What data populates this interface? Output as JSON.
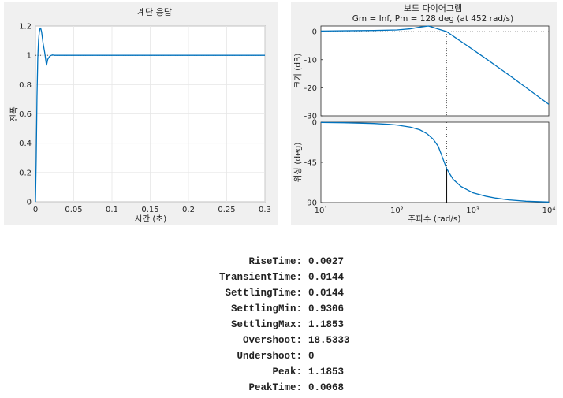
{
  "chart_data": [
    {
      "type": "line",
      "title": "계단 응답",
      "xlabel": "시간 (초)",
      "ylabel": "진폭",
      "xlim": [
        0,
        0.3
      ],
      "ylim": [
        0,
        1.2
      ],
      "x_ticks": [
        "0",
        "0.05",
        "0.1",
        "0.15",
        "0.2",
        "0.25",
        "0.3"
      ],
      "y_ticks": [
        "0",
        "0.2",
        "0.4",
        "0.6",
        "0.8",
        "1",
        "1.2"
      ],
      "grid": true,
      "line_color": "#0072bd",
      "reference_line": {
        "y": 1,
        "style": "dotted"
      },
      "series": [
        {
          "x": [
            0,
            0.001,
            0.002,
            0.0027,
            0.003,
            0.004,
            0.005,
            0.006,
            0.0068,
            0.008,
            0.009,
            0.01,
            0.012,
            0.0144,
            0.016,
            0.018,
            0.02,
            0.022,
            0.025,
            0.03,
            0.05,
            0.1,
            0.3
          ],
          "values": [
            0,
            0.3,
            0.72,
            0.9,
            0.98,
            1.1,
            1.16,
            1.183,
            1.1853,
            1.16,
            1.12,
            1.08,
            1.02,
            0.9306,
            0.972,
            0.99,
            0.998,
            1.002,
            1.0,
            1.0,
            1.0,
            1.0,
            1.0
          ]
        }
      ]
    },
    {
      "type": "line",
      "title": "보드 다이어그램",
      "subtitle": "Gm = Inf,  Pm = 128 deg (at 452 rad/s)",
      "xlabel": "주파수  (rad/s)",
      "xscale": "log",
      "xlim": [
        10,
        10000
      ],
      "x_ticks": [
        "10¹",
        "10²",
        "10³",
        "10⁴"
      ],
      "line_color": "#0072bd",
      "crossover_frequency": 452,
      "subplots": [
        {
          "ylabel": "크기 (dB)",
          "ylim": [
            -30,
            2
          ],
          "y_ticks": [
            "0",
            "-10",
            "-20",
            "-30"
          ],
          "reference_line": {
            "y": 0,
            "style": "dotted"
          },
          "series": [
            {
              "x": [
                10,
                20,
                50,
                100,
                150,
                200,
                260,
                300,
                350,
                452,
                600,
                800,
                1000,
                1500,
                2000,
                3000,
                5000,
                7000,
                10000
              ],
              "values": [
                0.2,
                0.3,
                0.4,
                0.6,
                1.0,
                1.6,
                2.0,
                1.5,
                0.9,
                0.0,
                -2.3,
                -4.6,
                -6.4,
                -9.7,
                -12.1,
                -15.5,
                -19.9,
                -22.8,
                -25.9
              ]
            }
          ]
        },
        {
          "ylabel": "위상 (deg)",
          "ylim": [
            -90,
            0
          ],
          "y_ticks": [
            "0",
            "-45",
            "-90"
          ],
          "marker_line": {
            "x": 452,
            "from": -90,
            "to": -52
          },
          "series": [
            {
              "x": [
                10,
                20,
                50,
                80,
                100,
                150,
                200,
                250,
                300,
                350,
                400,
                452,
                550,
                700,
                1000,
                1500,
                2000,
                3000,
                5000,
                10000
              ],
              "values": [
                -0.3,
                -0.6,
                -1.5,
                -2.5,
                -3.2,
                -5.5,
                -8.5,
                -13,
                -19,
                -27,
                -40,
                -52,
                -64,
                -72,
                -79,
                -83,
                -85,
                -87,
                -88.5,
                -89.4
              ]
            }
          ]
        }
      ]
    }
  ],
  "step_info": [
    {
      "key": "RiseTime",
      "value": "0.0027"
    },
    {
      "key": "TransientTime",
      "value": "0.0144"
    },
    {
      "key": "SettlingTime",
      "value": "0.0144"
    },
    {
      "key": "SettlingMin",
      "value": "0.9306"
    },
    {
      "key": "SettlingMax",
      "value": "1.1853"
    },
    {
      "key": "Overshoot",
      "value": "18.5333"
    },
    {
      "key": "Undershoot",
      "value": "0"
    },
    {
      "key": "Peak",
      "value": "1.1853"
    },
    {
      "key": "PeakTime",
      "value": "0.0068"
    }
  ]
}
